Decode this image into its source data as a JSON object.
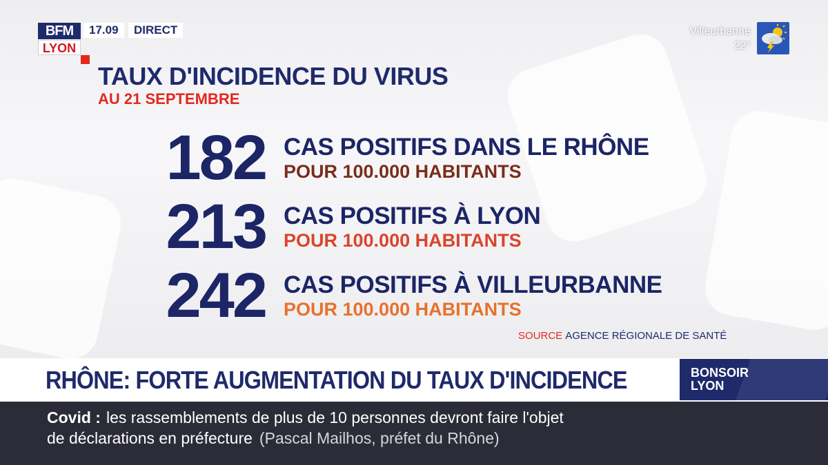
{
  "brand": {
    "top": "BFM",
    "bottom": "LYON"
  },
  "clock": "17.09",
  "live_label": "DIRECT",
  "weather": {
    "city": "Villeurbanne",
    "temperature": "22°",
    "icon": "storm-sun-icon"
  },
  "headline": {
    "title": "TAUX D'INCIDENCE DU VIRUS",
    "date": "AU 21 SEPTEMBRE"
  },
  "stats": [
    {
      "value": "182",
      "label": "CAS POSITIFS DANS LE RHÔNE",
      "unit": "POUR 100.000 HABITANTS",
      "unit_color": "#7a2d1a"
    },
    {
      "value": "213",
      "label": "CAS POSITIFS À LYON",
      "unit": "POUR 100.000 HABITANTS",
      "unit_color": "#d9452b"
    },
    {
      "value": "242",
      "label": "CAS POSITIFS À VILLEURBANNE",
      "unit": "POUR 100.000 HABITANTS",
      "unit_color": "#e6712c"
    }
  ],
  "source": {
    "label": "SOURCE",
    "value": "AGENCE RÉGIONALE DE SANTÉ"
  },
  "banner": {
    "text": "RHÔNE: FORTE AUGMENTATION DU TAUX D'INCIDENCE"
  },
  "show": {
    "line1": "BONSOIR",
    "line2": "LYON"
  },
  "ticker": {
    "topic": "Covid :",
    "line1": "les rassemblements de plus de 10 personnes devront faire l'objet",
    "line2": "de déclarations en préfecture",
    "attribution": "(Pascal Mailhos, préfet du Rhône)"
  },
  "colors": {
    "navy": "#1f2a6b",
    "red": "#e3281f",
    "ticker_bg": "#2b2c38"
  }
}
